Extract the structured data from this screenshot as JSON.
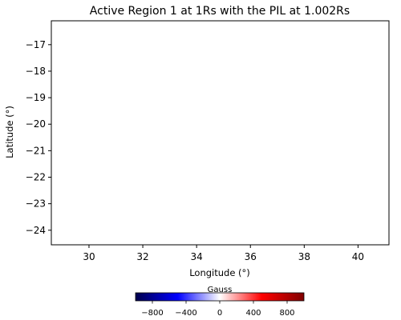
{
  "chart_data": {
    "type": "heatmap",
    "title": "Active Region 1 at 1Rs with the PIL at 1.002Rs",
    "xlabel": "Longitude (°)",
    "ylabel": "Latitude (°)",
    "xlim": [
      28.6,
      41.15
    ],
    "ylim": [
      -24.55,
      -16.1
    ],
    "x_ticks": [
      30,
      32,
      34,
      36,
      38,
      40
    ],
    "y_ticks": [
      -17,
      -18,
      -19,
      -20,
      -21,
      -22,
      -23,
      -24
    ],
    "grid": false,
    "colorbar": {
      "label": "Gauss",
      "orientation": "horizontal",
      "range": [
        -1000,
        1000
      ],
      "ticks": [
        -800,
        -400,
        0,
        400,
        800
      ],
      "tick_labels": [
        "−800",
        "−400",
        "0",
        "400",
        "800"
      ],
      "colormap": "seismic",
      "stops": [
        "#00004c",
        "#0000ff",
        "#ffffff",
        "#ff0000",
        "#7f0000"
      ]
    }
  }
}
